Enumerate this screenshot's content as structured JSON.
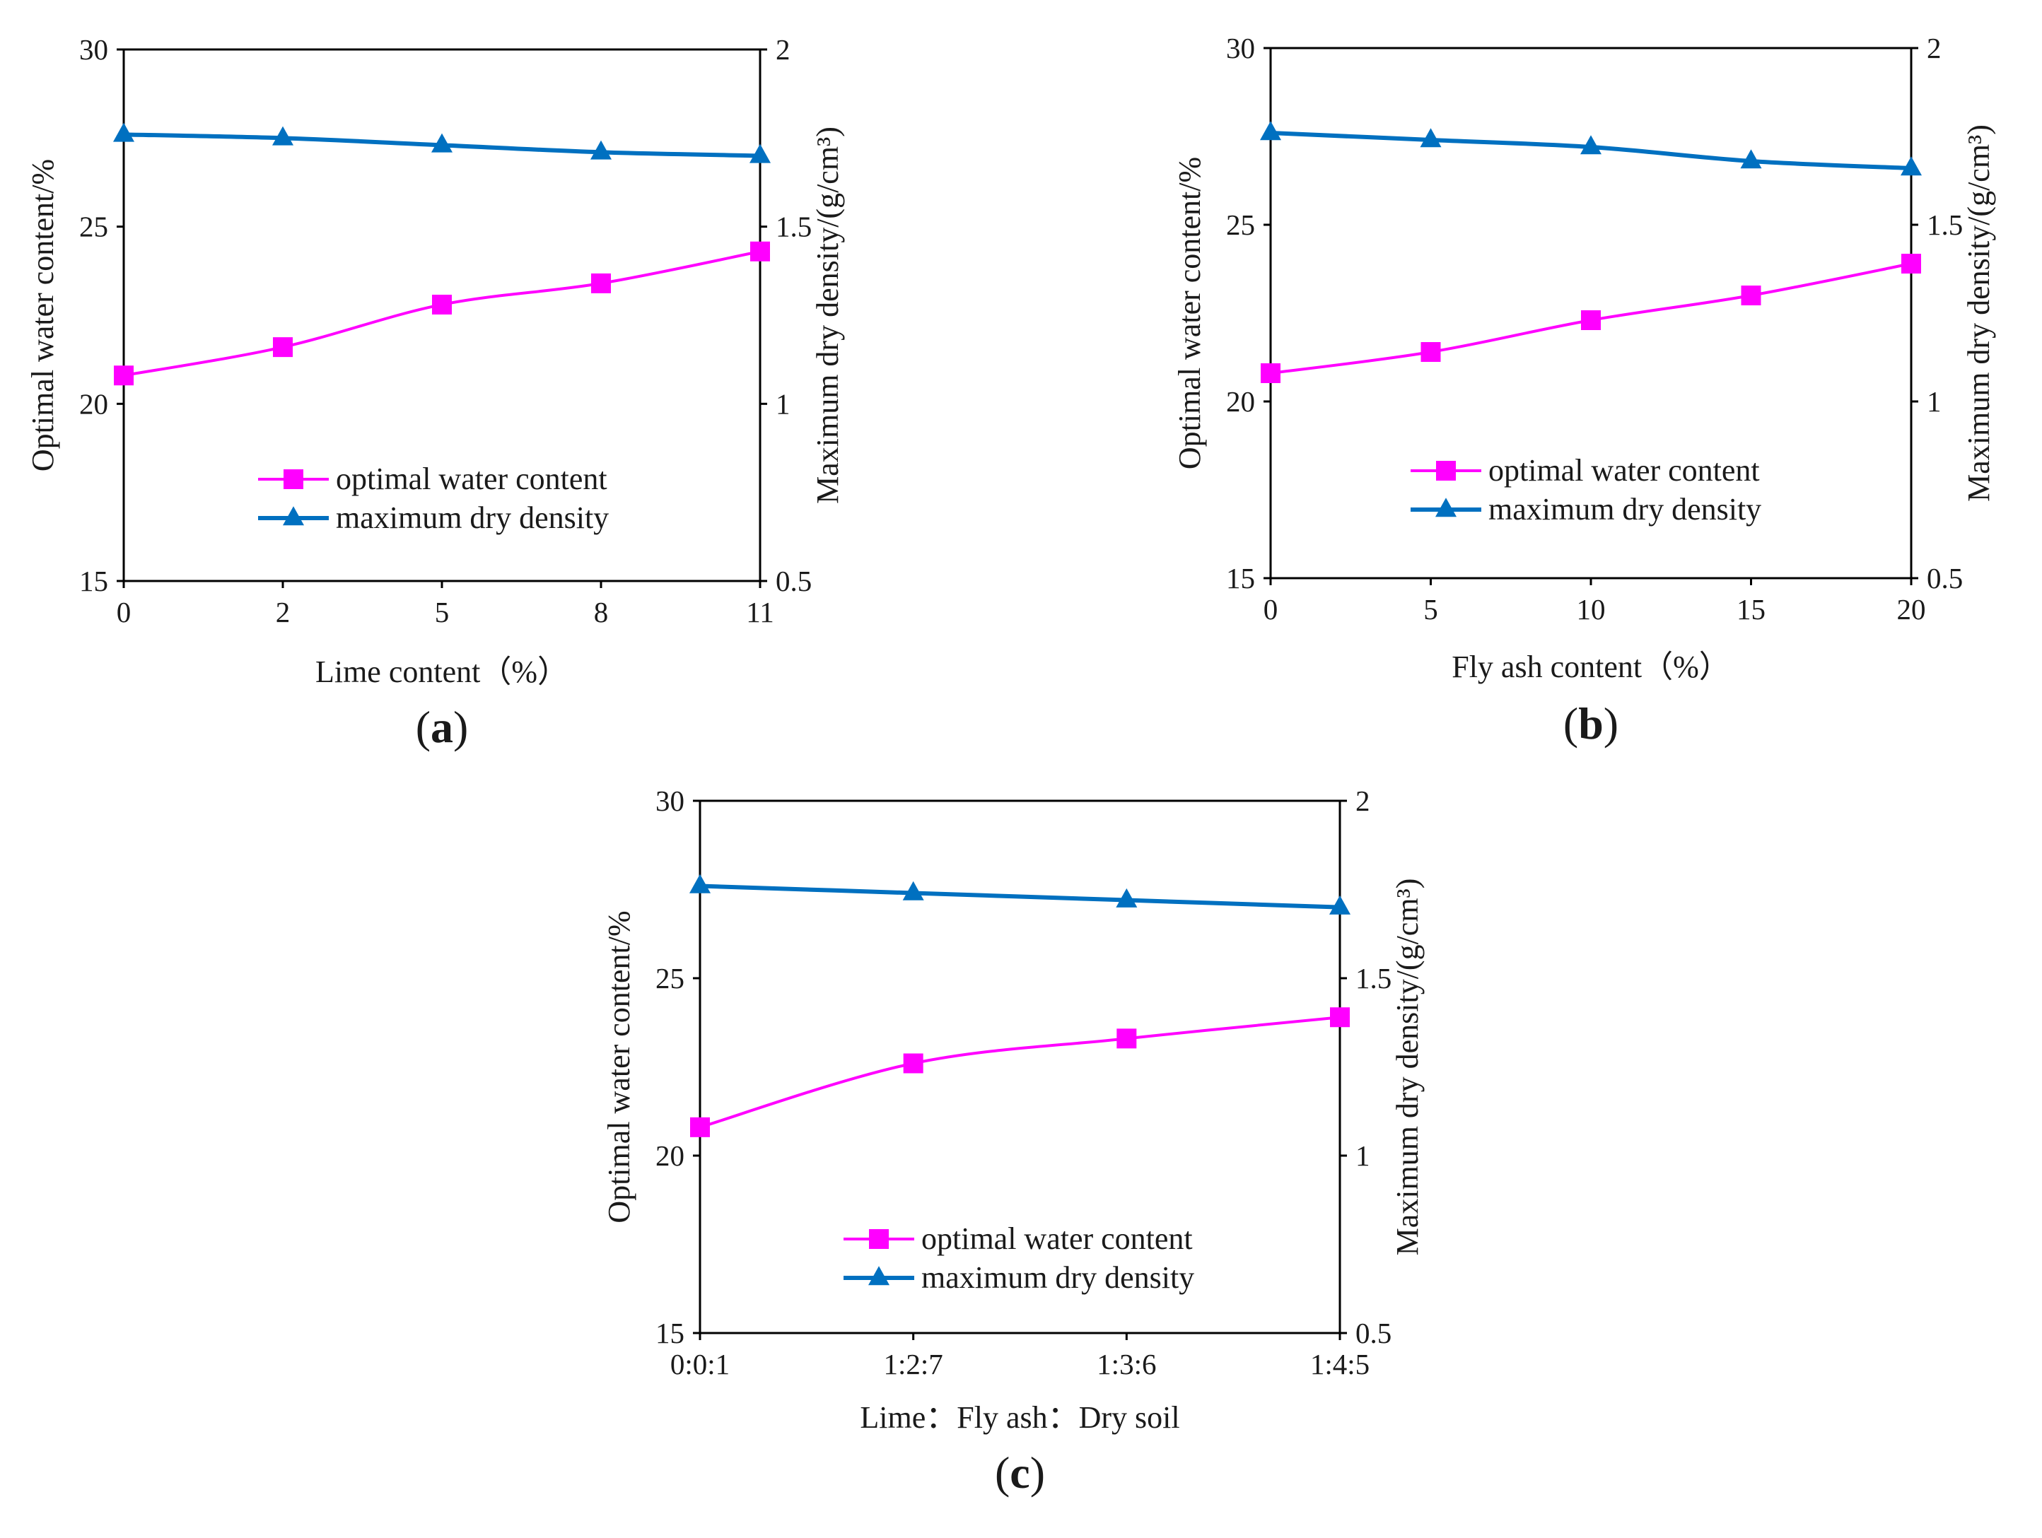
{
  "figure": {
    "type": "multi-panel dual-axis line chart"
  },
  "colors": {
    "optimal_water_content": "#ff00ff",
    "maximum_dry_density": "#0070c0",
    "axes": "#000000"
  },
  "chart_data": [
    {
      "type": "line",
      "panel_label": "a",
      "xlabel": "Lime content（%）",
      "ylabel_left": "Optimal water content/%",
      "ylabel_right": "Maximum dry density/(g/cm³)",
      "categories": [
        "0",
        "2",
        "5",
        "8",
        "11"
      ],
      "ylim_left": [
        15,
        30
      ],
      "yticks_left": [
        "15",
        "20",
        "25",
        "30"
      ],
      "ylim_right": [
        0.5,
        2
      ],
      "yticks_right": [
        "0.5",
        "1",
        "1.5",
        "2"
      ],
      "legend_position": "center-bottom",
      "grid": false,
      "series": [
        {
          "name": "optimal water content",
          "axis": "left",
          "marker": "square",
          "values": [
            20.8,
            21.6,
            22.8,
            23.4,
            24.3
          ]
        },
        {
          "name": "maximum dry density",
          "axis": "right",
          "marker": "triangle",
          "values": [
            1.76,
            1.75,
            1.73,
            1.71,
            1.7
          ]
        }
      ]
    },
    {
      "type": "line",
      "panel_label": "b",
      "xlabel": "Fly ash content（%）",
      "ylabel_left": "Optimal water content/%",
      "ylabel_right": "Maximum dry density/(g/cm³)",
      "categories": [
        "0",
        "5",
        "10",
        "15",
        "20"
      ],
      "ylim_left": [
        15,
        30
      ],
      "yticks_left": [
        "15",
        "20",
        "25",
        "30"
      ],
      "ylim_right": [
        0.5,
        2
      ],
      "yticks_right": [
        "0.5",
        "1",
        "1.5",
        "2"
      ],
      "legend_position": "center",
      "grid": false,
      "series": [
        {
          "name": "optimal water content",
          "axis": "left",
          "marker": "square",
          "values": [
            20.8,
            21.4,
            22.3,
            23.0,
            23.9
          ]
        },
        {
          "name": "maximum dry density",
          "axis": "right",
          "marker": "triangle",
          "values": [
            1.76,
            1.74,
            1.72,
            1.68,
            1.66
          ]
        }
      ]
    },
    {
      "type": "line",
      "panel_label": "c",
      "xlabel": "Lime：Fly ash：Dry soil",
      "ylabel_left": "Optimal water content/%",
      "ylabel_right": "Maximum dry density/(g/cm³)",
      "categories": [
        "0:0:1",
        "1:2:7",
        "1:3:6",
        "1:4:5"
      ],
      "ylim_left": [
        15,
        30
      ],
      "yticks_left": [
        "15",
        "20",
        "25",
        "30"
      ],
      "ylim_right": [
        0.5,
        2
      ],
      "yticks_right": [
        "0.5",
        "1",
        "1.5",
        "2"
      ],
      "legend_position": "center-bottom",
      "grid": false,
      "series": [
        {
          "name": "optimal water content",
          "axis": "left",
          "marker": "square",
          "values": [
            20.8,
            22.6,
            23.3,
            23.9
          ]
        },
        {
          "name": "maximum dry density",
          "axis": "right",
          "marker": "triangle",
          "values": [
            1.76,
            1.74,
            1.72,
            1.7
          ]
        }
      ]
    }
  ]
}
